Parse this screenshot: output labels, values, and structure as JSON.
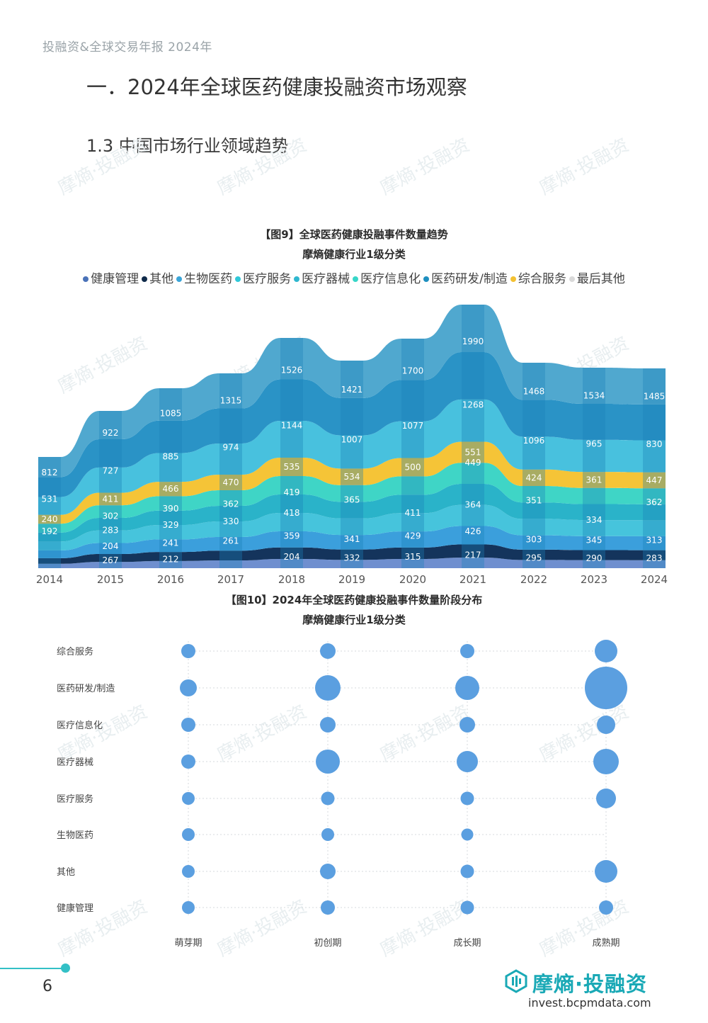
{
  "header": {
    "running_title": "投融资&全球交易年报 2024年"
  },
  "section": {
    "title": "一．2024年全球医药健康投融资市场观察"
  },
  "subsection": {
    "title": "1.3 中国市场行业领域趋势"
  },
  "watermark": {
    "text": "摩熵·投融资"
  },
  "chart_data": [
    {
      "type": "area",
      "title": "【图9】全球医药健康投融事件数量趋势",
      "subtitle": "摩熵健康行业1级分类",
      "legend": {
        "position": "top"
      },
      "x": [
        "2014",
        "2015",
        "2016",
        "2017",
        "2018",
        "2019",
        "2020",
        "2021",
        "2022",
        "2023",
        "2024"
      ],
      "series": [
        {
          "name": "健康管理",
          "color": "#4a72b8",
          "values": [
            null,
            null,
            null,
            null,
            null,
            null,
            null,
            null,
            null,
            null,
            null
          ]
        },
        {
          "name": "其他",
          "color": "#0f2a4a",
          "values": [
            null,
            204,
            241,
            261,
            359,
            341,
            429,
            426,
            303,
            345,
            313
          ]
        },
        {
          "name": "生物医药",
          "color": "#3aa5d8",
          "values": [
            null,
            267,
            212,
            null,
            204,
            332,
            315,
            217,
            295,
            290,
            283
          ]
        },
        {
          "name": "医疗服务",
          "color": "#2fc8d8",
          "values": [
            null,
            283,
            329,
            330,
            418,
            null,
            411,
            364,
            null,
            334,
            null
          ]
        },
        {
          "name": "医疗器械",
          "color": "#2fb7cf",
          "values": [
            192,
            302,
            390,
            362,
            419,
            365,
            null,
            null,
            351,
            null,
            362
          ]
        },
        {
          "name": "医疗信息化",
          "color": "#37d6c8",
          "values": [
            null,
            null,
            null,
            null,
            null,
            null,
            null,
            449,
            null,
            null,
            null
          ]
        },
        {
          "name": "医药研发/制造",
          "color": "#1e8fbf",
          "values": [
            812,
            922,
            1085,
            1315,
            1526,
            1421,
            1700,
            1990,
            1468,
            1534,
            1485
          ]
        },
        {
          "name": "综合服务",
          "color": "#f3c132",
          "values": [
            240,
            411,
            466,
            470,
            535,
            534,
            500,
            551,
            424,
            361,
            447
          ]
        },
        {
          "name": "最后其他",
          "color": "#d9d9d9",
          "values": [
            null,
            null,
            null,
            null,
            null,
            null,
            null,
            null,
            null,
            null,
            null
          ]
        }
      ],
      "extra_series": [
        {
          "name": "医疗服务",
          "values": [
            531,
            727,
            885,
            974,
            1144,
            1007,
            1077,
            1268,
            1096,
            965,
            830
          ]
        }
      ]
    },
    {
      "type": "scatter",
      "title": "【图10】2024年全球医药健康投融事件数量阶段分布",
      "subtitle": "摩熵健康行业1级分类",
      "categories_x": [
        "萌芽期",
        "初创期",
        "成长期",
        "成熟期"
      ],
      "categories_y": [
        "综合服务",
        "医药研发/制造",
        "医疗信息化",
        "医疗器械",
        "医疗服务",
        "生物医药",
        "其他",
        "健康管理"
      ],
      "bubble_color": "#5b9fe0",
      "sizes": [
        [
          1.0,
          1.1,
          1.0,
          1.6
        ],
        [
          1.2,
          1.8,
          1.7,
          3.0
        ],
        [
          1.0,
          1.1,
          1.1,
          1.3
        ],
        [
          1.0,
          1.7,
          1.5,
          1.8
        ],
        [
          0.9,
          0.95,
          0.95,
          1.4
        ],
        [
          0.9,
          0.9,
          0.85,
          null
        ],
        [
          0.9,
          1.1,
          0.95,
          1.6
        ],
        [
          0.9,
          1.0,
          0.95,
          1.0
        ]
      ]
    }
  ],
  "footer": {
    "page_number": "6",
    "brand_name": "摩熵·投融资",
    "brand_url": "invest.bcpmdata.com"
  }
}
